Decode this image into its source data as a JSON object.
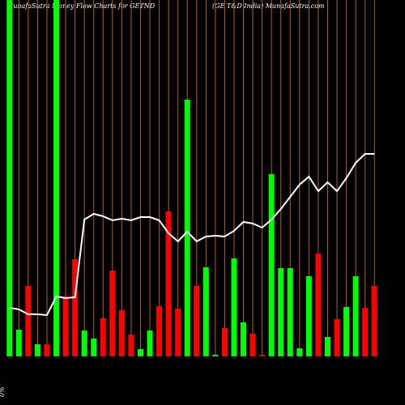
{
  "chart_data": {
    "type": "bar-line",
    "title": "MunafaSutra  Money Flow  Charts for GETND",
    "subtitle": "(GE T&D India) MunafaSutra.com",
    "y_label": "0%",
    "ylim": [
      0,
      440
    ],
    "categories": [
      null,
      null,
      null,
      null,
      null,
      null,
      null,
      null,
      null,
      null,
      null,
      null,
      null,
      null,
      null,
      null,
      null,
      null,
      null,
      null,
      null,
      null,
      null,
      null,
      null,
      null,
      null,
      null,
      null,
      null,
      null,
      null,
      null,
      null,
      null,
      null,
      null,
      null,
      null,
      null
    ],
    "series": [
      {
        "type": "bar",
        "values": [
          440,
          33,
          87,
          15,
          15,
          440,
          74,
          120,
          32,
          22,
          47,
          106,
          57,
          27,
          9,
          32,
          62,
          179,
          59,
          317,
          87,
          110,
          2,
          35,
          121,
          42,
          28,
          2,
          225,
          109,
          109,
          10,
          99,
          127,
          24,
          46,
          61,
          99,
          60,
          87
        ],
        "colors": [
          "#00ff00",
          "#00ff00",
          "#ff0000",
          "#00ff00",
          "#ff0000",
          "#00ff00",
          "#ff0000",
          "#ff0000",
          "#00ff00",
          "#00ff00",
          "#ff0000",
          "#ff0000",
          "#ff0000",
          "#ff0000",
          "#00ff00",
          "#00ff00",
          "#ff0000",
          "#ff0000",
          "#ff0000",
          "#00ff00",
          "#ff0000",
          "#00ff00",
          "#00ff00",
          "#ff0000",
          "#00ff00",
          "#00ff00",
          "#ff0000",
          "#ff0000",
          "#00ff00",
          "#00ff00",
          "#00ff00",
          "#00ff00",
          "#00ff00",
          "#ff0000",
          "#00ff00",
          "#ff0000",
          "#00ff00",
          "#00ff00",
          "#ff0000",
          "#ff0000"
        ]
      },
      {
        "type": "line",
        "color": "#ffffff",
        "values": [
          60,
          58,
          52,
          52,
          51,
          74,
          72,
          73,
          169,
          176,
          173,
          168,
          170,
          168,
          172,
          172,
          168,
          152,
          142,
          154,
          142,
          148,
          149,
          148,
          155,
          166,
          164,
          159,
          169,
          182,
          197,
          212,
          222,
          204,
          215,
          204,
          220,
          239,
          250,
          250
        ]
      }
    ],
    "gridline_color": "#b8621b"
  }
}
